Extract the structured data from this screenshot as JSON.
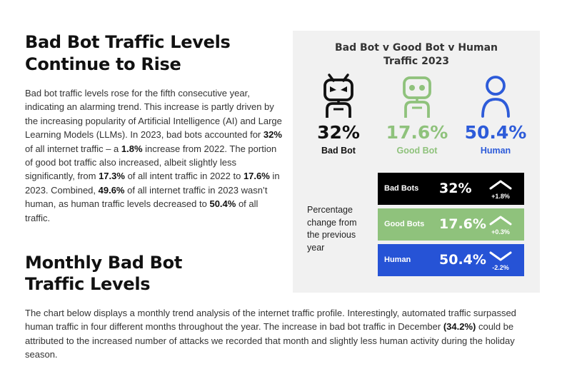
{
  "section1": {
    "heading_line1": "Bad Bot Traffic Levels",
    "heading_line2": "Continue to Rise",
    "para": [
      "Bad bot traffic levels rose for the fifth consecutive year, indicating an alarming trend. This increase is partly driven by the increasing popularity of Artificial Intelligence (AI) and Large Learning Models (LLMs). In 2023, bad bots accounted for ",
      "32%",
      " of all internet traffic – a ",
      "1.8%",
      " increase from 2022. The portion of good bot traffic also increased, albeit slightly less significantly, from ",
      "17.3%",
      " of all intent traffic in 2022 to ",
      "17.6%",
      " in 2023. Combined, ",
      "49.6%",
      " of all internet traffic in 2023 wasn’t human, as human traffic levels decreased to ",
      "50.4%",
      " of all traffic."
    ]
  },
  "section2": {
    "heading_line1": "Monthly Bad Bot",
    "heading_line2": "Traffic Levels",
    "para": [
      "The chart below displays a monthly trend analysis of the internet traffic profile. Interestingly, automated traffic surpassed human traffic in four different months throughout the year. The increase in bad bot traffic in December ",
      "(34.2%)",
      " could be attributed to the increased number of attacks we recorded that month and slightly less human activity during the holiday season."
    ]
  },
  "panel": {
    "title_line1": "Bad Bot v Good Bot v Human",
    "title_line2": "Traffic 2023",
    "columns": [
      {
        "icon": "bad-bot-icon",
        "pct": "32%",
        "label": "Bad Bot",
        "color": "#111111"
      },
      {
        "icon": "good-bot-icon",
        "pct": "17.6%",
        "label": "Good Bot",
        "color": "#8fc27c"
      },
      {
        "icon": "human-icon",
        "pct": "50.4%",
        "label": "Human",
        "color": "#2d5bd9"
      }
    ],
    "caption_lines": [
      "Percentage",
      "change from",
      "the previous",
      "year"
    ],
    "bars": [
      {
        "name": "Bad Bots",
        "value": "32%",
        "change": "+1.8%",
        "direction": "up",
        "color": "#000000"
      },
      {
        "name": "Good Bots",
        "value": "17.6%",
        "change": "+0.3%",
        "direction": "up",
        "color": "#8fc27c"
      },
      {
        "name": "Human",
        "value": "50.4%",
        "change": "-2.2%",
        "direction": "down",
        "color": "#2653d6"
      }
    ]
  }
}
